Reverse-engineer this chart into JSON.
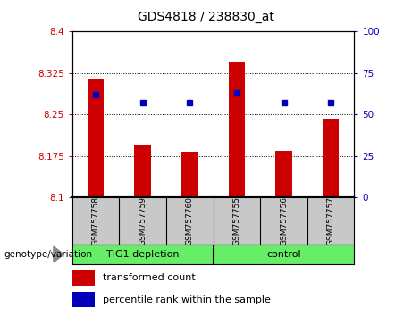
{
  "title": "GDS4818 / 238830_at",
  "samples": [
    "GSM757758",
    "GSM757759",
    "GSM757760",
    "GSM757755",
    "GSM757756",
    "GSM757757"
  ],
  "bar_values": [
    8.315,
    8.195,
    8.183,
    8.345,
    8.185,
    8.242
  ],
  "percentile_values": [
    62,
    57,
    57,
    63,
    57,
    57
  ],
  "ylim_left": [
    8.1,
    8.4
  ],
  "ylim_right": [
    0,
    100
  ],
  "yticks_left": [
    8.1,
    8.175,
    8.25,
    8.325,
    8.4
  ],
  "yticks_right": [
    0,
    25,
    50,
    75,
    100
  ],
  "ytick_labels_left": [
    "8.1",
    "8.175",
    "8.25",
    "8.325",
    "8.4"
  ],
  "ytick_labels_right": [
    "0",
    "25",
    "50",
    "75",
    "100"
  ],
  "bar_color": "#CC0000",
  "percentile_color": "#0000BB",
  "group_bg_color": "#66EE66",
  "tick_bg_color": "#C8C8C8",
  "bar_bottom": 8.1,
  "bar_width": 0.35,
  "legend_bar_label": "transformed count",
  "legend_percentile_label": "percentile rank within the sample",
  "genotype_label": "genotype/variation",
  "group1_name": "TIG1 depletion",
  "group2_name": "control",
  "group1_indices": [
    0,
    1,
    2
  ],
  "group2_indices": [
    3,
    4,
    5
  ]
}
